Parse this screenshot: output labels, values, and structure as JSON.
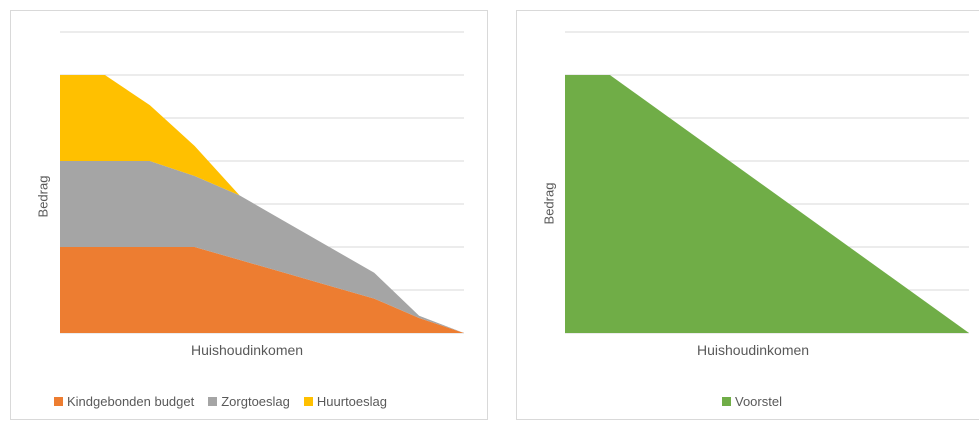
{
  "chart_data": [
    {
      "type": "area",
      "stacked": true,
      "xlabel": "Huishoudinkomen",
      "ylabel": "Bedrag",
      "x_ticks_shown": false,
      "y_ticks_shown": false,
      "grid": "horizontal",
      "legend_position": "bottom",
      "x": [
        0,
        1,
        2,
        3,
        4,
        5,
        6,
        7,
        8,
        9
      ],
      "series": [
        {
          "name": "Kindgebonden budget",
          "color": "#ED7D31",
          "values": [
            2,
            2,
            2,
            2,
            1.7,
            1.4,
            1.1,
            0.8,
            0.35,
            0
          ]
        },
        {
          "name": "Zorgtoeslag",
          "color": "#A5A5A5",
          "values": [
            2,
            2,
            2,
            1.65,
            1.5,
            1.2,
            0.9,
            0.6,
            0.05,
            0
          ]
        },
        {
          "name": "Huurtoeslag",
          "color": "#FFC000",
          "values": [
            2,
            2,
            1.3,
            0.7,
            0,
            0,
            0,
            0,
            0,
            0
          ]
        }
      ],
      "ylim": [
        0,
        7
      ]
    },
    {
      "type": "area",
      "xlabel": "Huishoudinkomen",
      "ylabel": "Bedrag",
      "x_ticks_shown": false,
      "y_ticks_shown": false,
      "grid": "horizontal",
      "legend_position": "bottom",
      "x": [
        0,
        1,
        9
      ],
      "series": [
        {
          "name": "Voorstel",
          "color": "#70AD47",
          "values": [
            6,
            6,
            0
          ]
        }
      ],
      "ylim": [
        0,
        7
      ]
    }
  ]
}
